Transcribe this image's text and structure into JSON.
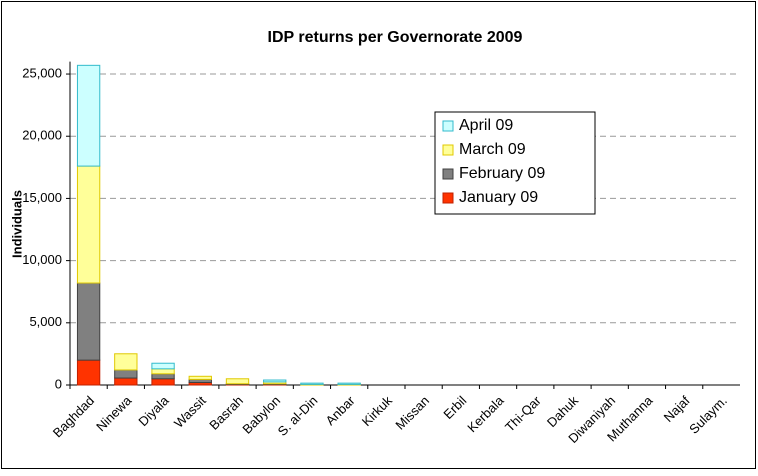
{
  "chart_data": {
    "type": "stacked_bar",
    "title": "IDP returns per Governorate 2009",
    "ylabel": "Individuals",
    "categories": [
      "Baghdad",
      "Ninewa",
      "Diyala",
      "Wassit",
      "Basrah",
      "Babylon",
      "S. al-Din",
      "Anbar",
      "Kirkuk",
      "Missan",
      "Erbil",
      "Kerbala",
      "Thi-Qar",
      "Dahuk",
      "Diwaniyah",
      "Muthanna",
      "Najaf",
      "Sulaym."
    ],
    "series": [
      {
        "name": "January 09",
        "color": "#ff3300",
        "stroke": "#c02000",
        "values": [
          2000,
          560,
          500,
          200,
          50,
          50,
          0,
          0,
          0,
          0,
          0,
          0,
          0,
          0,
          0,
          0,
          0,
          0
        ]
      },
      {
        "name": "February 09",
        "color": "#808080",
        "stroke": "#404040",
        "values": [
          6200,
          650,
          400,
          250,
          50,
          50,
          0,
          0,
          0,
          0,
          0,
          0,
          0,
          0,
          0,
          0,
          0,
          0
        ]
      },
      {
        "name": "March 09",
        "color": "#ffff99",
        "stroke": "#e0c800",
        "values": [
          9400,
          1300,
          400,
          250,
          400,
          150,
          50,
          50,
          0,
          0,
          0,
          0,
          0,
          0,
          0,
          0,
          0,
          0
        ]
      },
      {
        "name": "April 09",
        "color": "#ccffff",
        "stroke": "#33bbcc",
        "values": [
          8100,
          0,
          450,
          0,
          0,
          150,
          100,
          100,
          0,
          0,
          0,
          0,
          0,
          0,
          0,
          0,
          0,
          0
        ]
      }
    ],
    "ylim": [
      0,
      26000
    ],
    "yticks": [
      0,
      {
        "value": 5000,
        "label": "5,000"
      },
      {
        "value": 10000,
        "label": "10,000"
      },
      {
        "value": 15000,
        "label": "15,000"
      },
      {
        "value": 20000,
        "label": "20,000"
      },
      {
        "value": 25000,
        "label": "25,000"
      }
    ],
    "grid": true,
    "legend": "upper right"
  }
}
